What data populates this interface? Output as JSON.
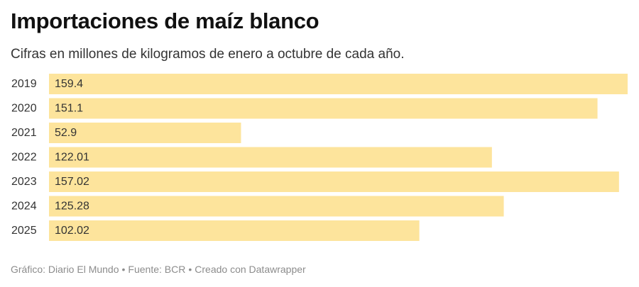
{
  "header": {
    "title": "Importaciones de maíz blanco",
    "subtitle": "Cifras en millones de kilogramos de enero a octubre de cada año."
  },
  "footer": {
    "chart_credit": "Gráfico: Diario El Mundo",
    "source": "Fuente: BCR",
    "tool": "Creado con Datawrapper",
    "separator": "•"
  },
  "colors": {
    "bar": "#fde49c",
    "label_text": "#333333",
    "value_text": "#333333"
  },
  "chart_data": {
    "type": "bar",
    "orientation": "horizontal",
    "title": "Importaciones de maíz blanco",
    "subtitle": "Cifras en millones de kilogramos de enero a octubre de cada año.",
    "categories": [
      "2019",
      "2020",
      "2021",
      "2022",
      "2023",
      "2024",
      "2025"
    ],
    "values": [
      159.4,
      151.1,
      52.9,
      122.01,
      157.02,
      125.28,
      102.02
    ],
    "value_labels": [
      "159.4",
      "151.1",
      "52.9",
      "122.01",
      "157.02",
      "125.28",
      "102.02"
    ],
    "xlim": [
      0,
      159.4
    ],
    "grid": false,
    "legend": "none",
    "value_labels_position": "inside-start"
  }
}
